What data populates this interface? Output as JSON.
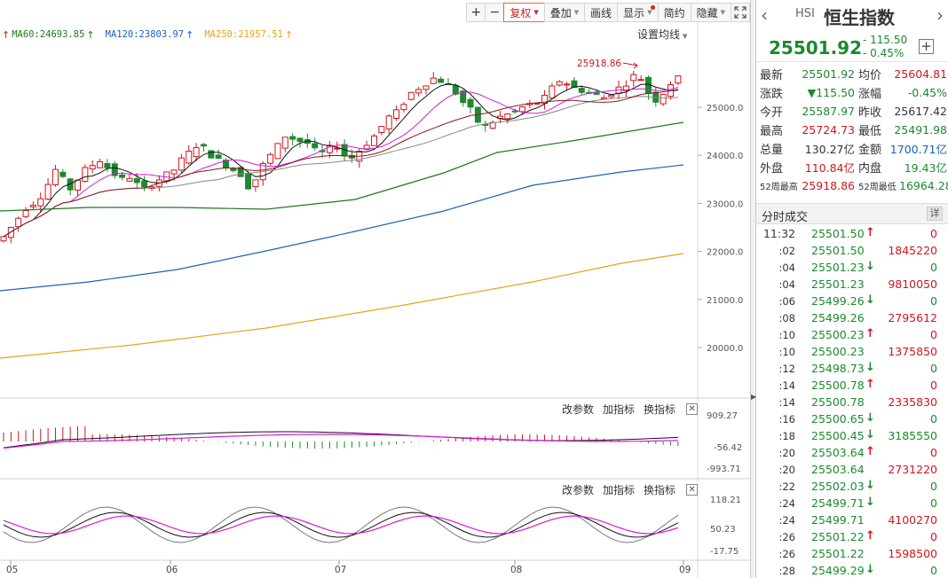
{
  "toolbar": {
    "zoom_in": "+",
    "zoom_out": "−",
    "adjust_label": "复权",
    "overlay_label": "叠加",
    "draw_label": "画线",
    "display_label": "显示",
    "simple_label": "简约",
    "hide_label": "隐藏",
    "fullscreen_icon": "fullscreen-icon"
  },
  "ma_legend": [
    {
      "label": "MA60:24693.85",
      "arrow": "↑",
      "color": "#1a7a1a"
    },
    {
      "label": "MA120:23803.97",
      "arrow": "↑",
      "color": "#1565c0"
    },
    {
      "label": "MA250:21957.51",
      "arrow": "↑",
      "color": "#e8a317"
    }
  ],
  "ma_legend_first_arrow": "↑",
  "ma_settings_label": "设置均线",
  "price_axis": [
    "25000.0",
    "24000.0",
    "23000.0",
    "22000.0",
    "21000.0",
    "20000.0"
  ],
  "high_marker": "25918.86",
  "date_axis": [
    "05",
    "06",
    "07",
    "08",
    "09"
  ],
  "macd_pane": {
    "buttons": [
      "改参数",
      "加指标",
      "换指标"
    ],
    "axis": [
      "909.27",
      "-56.42",
      "-993.71"
    ]
  },
  "kdj_pane": {
    "buttons": [
      "改参数",
      "加指标",
      "换指标"
    ],
    "axis": [
      "118.21",
      "50.23",
      "-17.75"
    ]
  },
  "colors": {
    "up": "#d0161d",
    "down": "#1b8a2e",
    "ma5": "#111111",
    "ma10": "#d81bd8",
    "ma20": "#8b1a1a",
    "ma30": "#888888"
  },
  "quote": {
    "code": "HSI",
    "name": "恒生指数",
    "price": "25501.92",
    "change": "- 115.50",
    "change_pct": "- 0.45%",
    "rows": [
      {
        "l1": "最新",
        "v1": "25501.92",
        "c1": "green",
        "l2": "均价",
        "v2": "25604.81",
        "c2": "red"
      },
      {
        "l1": "涨跌",
        "v1": "▼115.50",
        "c1": "green",
        "l2": "涨幅",
        "v2": "-0.45%",
        "c2": "green"
      },
      {
        "l1": "今开",
        "v1": "25587.97",
        "c1": "green",
        "l2": "昨收",
        "v2": "25617.42",
        "c2": "black"
      },
      {
        "l1": "最高",
        "v1": "25724.73",
        "c1": "red",
        "l2": "最低",
        "v2": "25491.98",
        "c2": "green"
      },
      {
        "l1": "总量",
        "v1": "130.27亿",
        "c1": "black",
        "l2": "金额",
        "v2": "1700.71亿",
        "c2": "blue"
      },
      {
        "l1": "外盘",
        "v1": "110.84亿",
        "c1": "red",
        "l2": "内盘",
        "v2": "19.43亿",
        "c2": "green"
      },
      {
        "l1": "52周最高",
        "v1": "25918.86",
        "c1": "red",
        "l2": "52周最低",
        "v2": "16964.28",
        "c2": "green",
        "small": true
      }
    ]
  },
  "ticks": {
    "title": "分时成交",
    "detail_label": "详",
    "rows": [
      {
        "time": "11:32",
        "price": "25501.50",
        "arrow": "↑",
        "vol": "0",
        "vcolor": "red"
      },
      {
        "time": ":02",
        "price": "25501.50",
        "arrow": "",
        "vol": "1845220",
        "vcolor": "red"
      },
      {
        "time": ":04",
        "price": "25501.23",
        "arrow": "↓",
        "vol": "0",
        "vcolor": "green"
      },
      {
        "time": ":04",
        "price": "25501.23",
        "arrow": "",
        "vol": "9810050",
        "vcolor": "red"
      },
      {
        "time": ":06",
        "price": "25499.26",
        "arrow": "↓",
        "vol": "0",
        "vcolor": "green"
      },
      {
        "time": ":08",
        "price": "25499.26",
        "arrow": "",
        "vol": "2795612",
        "vcolor": "red"
      },
      {
        "time": ":10",
        "price": "25500.23",
        "arrow": "↑",
        "vol": "0",
        "vcolor": "red"
      },
      {
        "time": ":10",
        "price": "25500.23",
        "arrow": "",
        "vol": "1375850",
        "vcolor": "red"
      },
      {
        "time": ":12",
        "price": "25498.73",
        "arrow": "↓",
        "vol": "0",
        "vcolor": "green"
      },
      {
        "time": ":14",
        "price": "25500.78",
        "arrow": "↑",
        "vol": "0",
        "vcolor": "red"
      },
      {
        "time": ":14",
        "price": "25500.78",
        "arrow": "",
        "vol": "2335830",
        "vcolor": "red"
      },
      {
        "time": ":16",
        "price": "25500.65",
        "arrow": "↓",
        "vol": "0",
        "vcolor": "green"
      },
      {
        "time": ":18",
        "price": "25500.45",
        "arrow": "↓",
        "vol": "3185550",
        "vcolor": "green"
      },
      {
        "time": ":20",
        "price": "25503.64",
        "arrow": "↑",
        "vol": "0",
        "vcolor": "red"
      },
      {
        "time": ":20",
        "price": "25503.64",
        "arrow": "",
        "vol": "2731220",
        "vcolor": "red"
      },
      {
        "time": ":22",
        "price": "25502.03",
        "arrow": "↓",
        "vol": "0",
        "vcolor": "green"
      },
      {
        "time": ":24",
        "price": "25499.71",
        "arrow": "↓",
        "vol": "0",
        "vcolor": "green"
      },
      {
        "time": ":24",
        "price": "25499.71",
        "arrow": "",
        "vol": "4100270",
        "vcolor": "red"
      },
      {
        "time": ":26",
        "price": "25501.22",
        "arrow": "↑",
        "vol": "0",
        "vcolor": "red"
      },
      {
        "time": ":26",
        "price": "25501.22",
        "arrow": "",
        "vol": "1598500",
        "vcolor": "red"
      },
      {
        "time": ":28",
        "price": "25499.29",
        "arrow": "↓",
        "vol": "0",
        "vcolor": "green"
      }
    ]
  }
}
